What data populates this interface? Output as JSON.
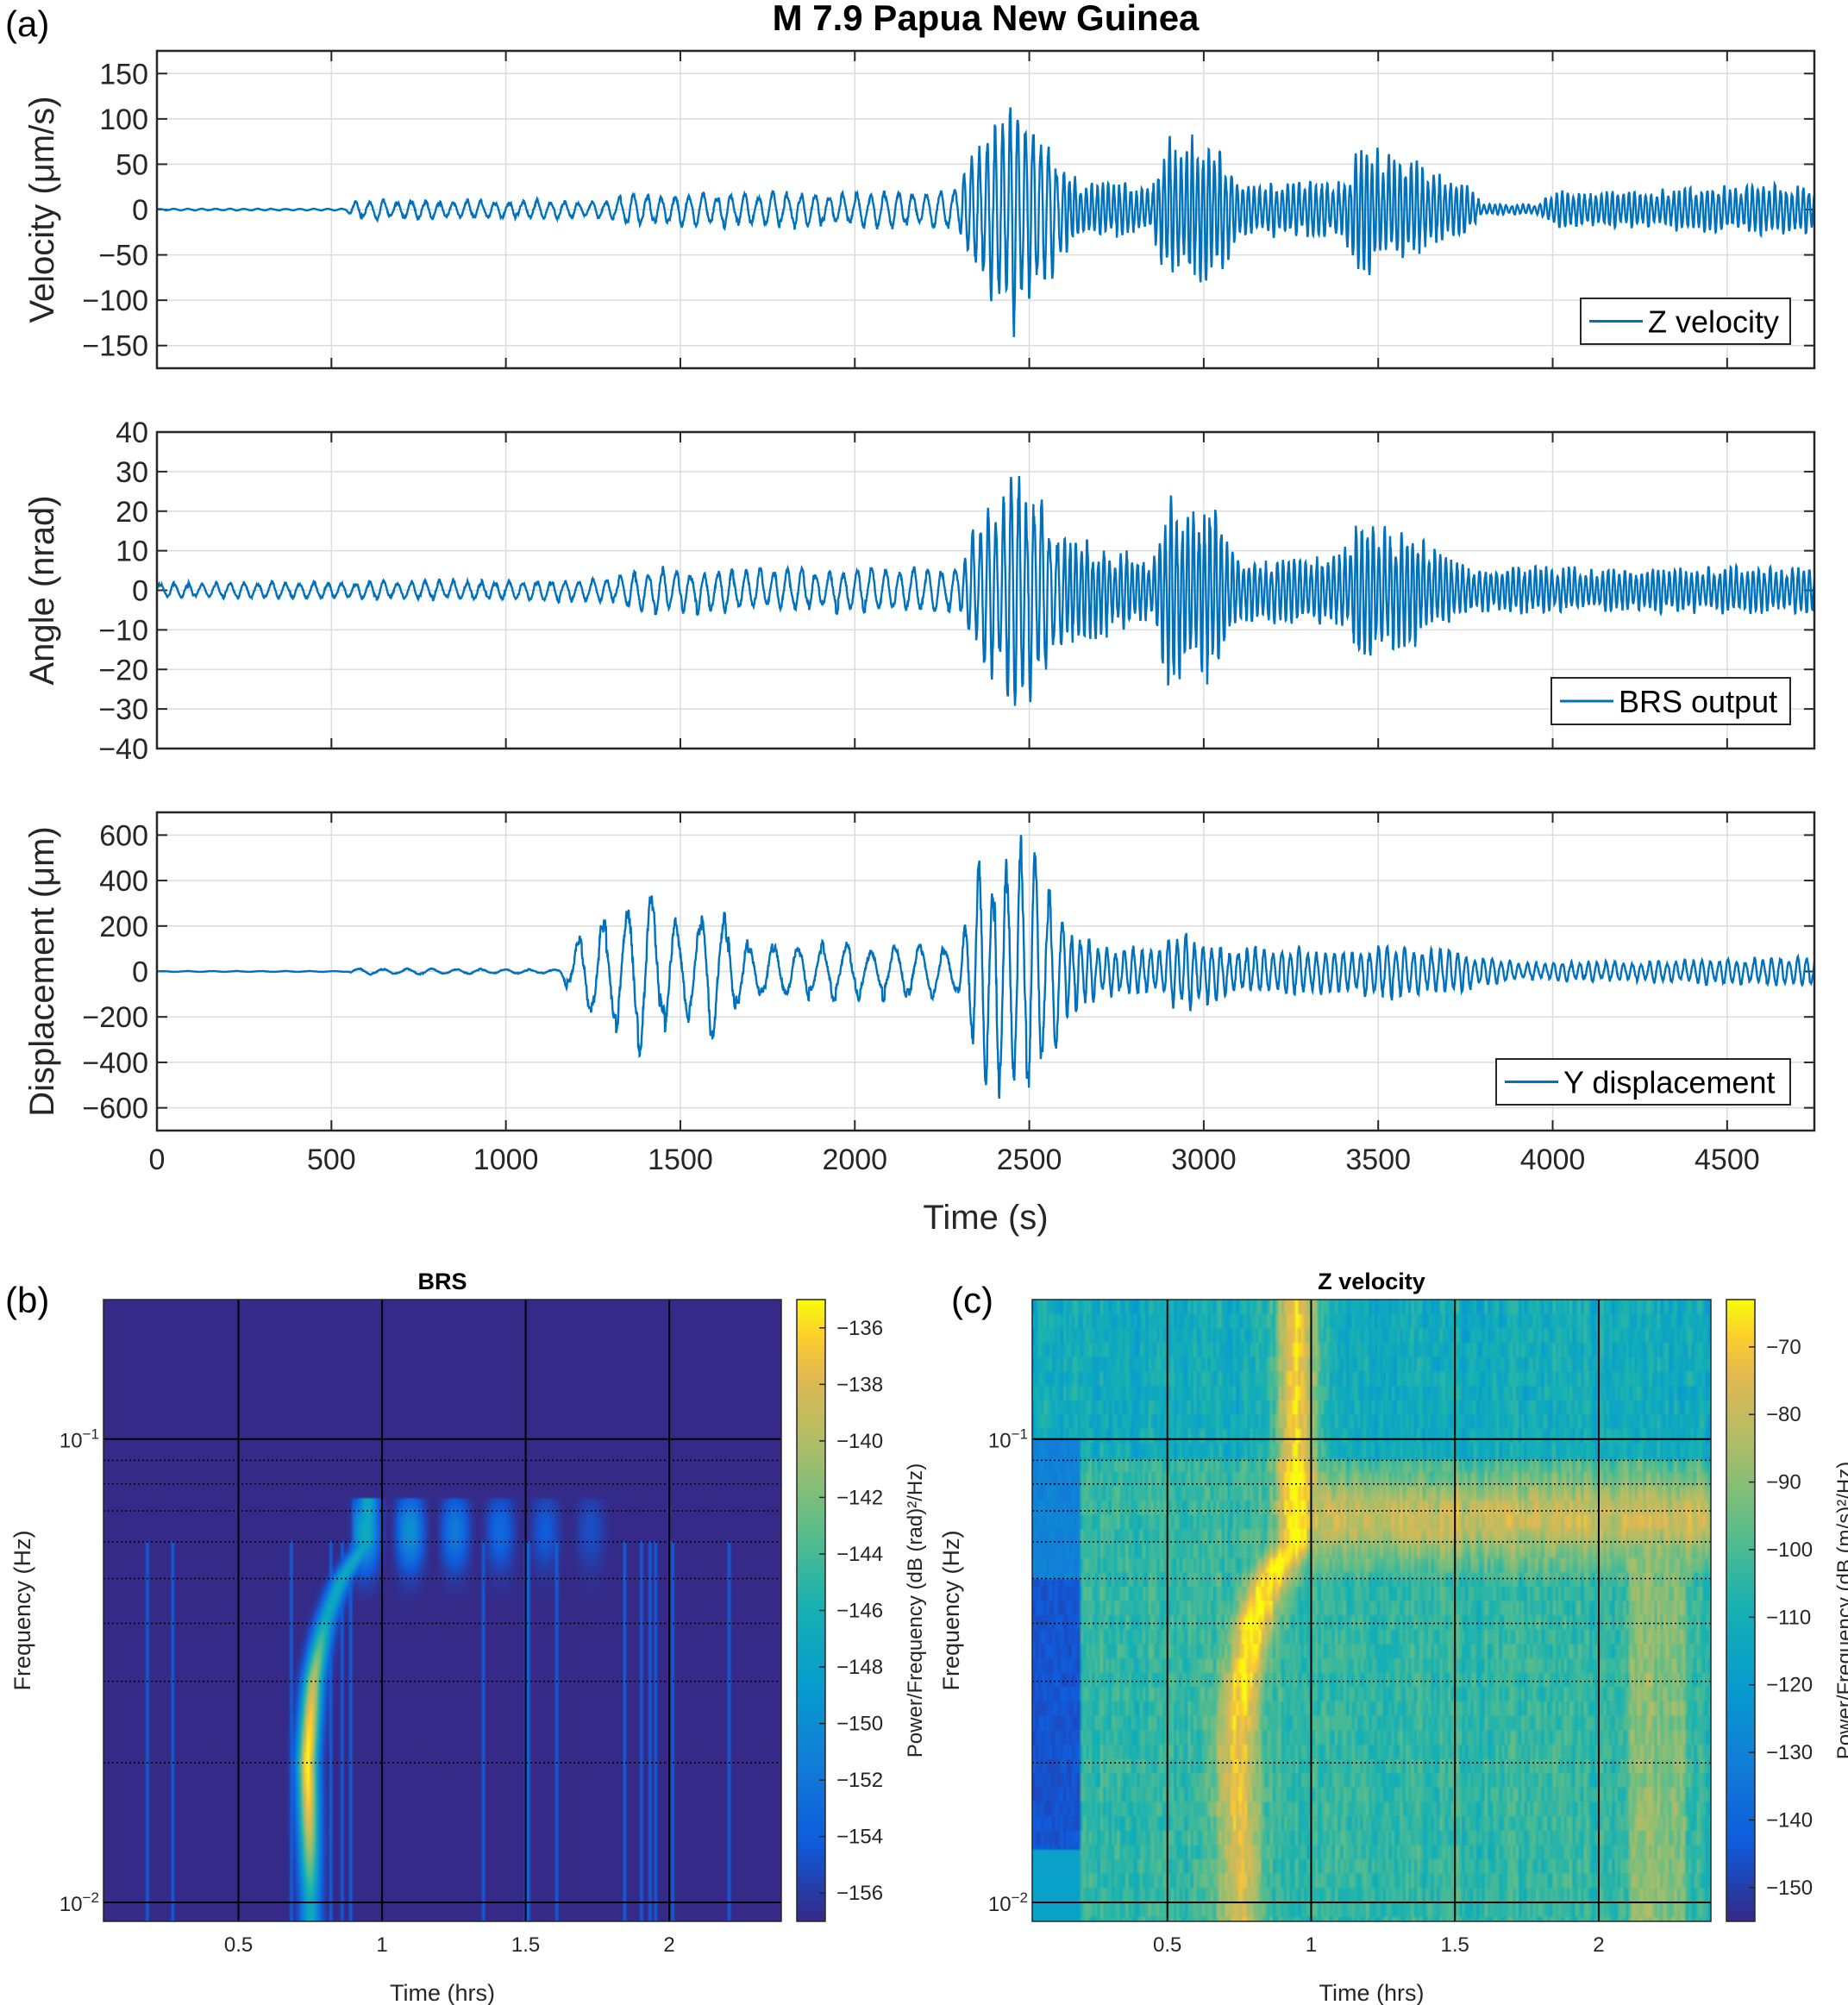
{
  "figure": {
    "title": "M 7.9 Papua New Guinea",
    "panel_labels": [
      "(a)",
      "(b)",
      "(c)"
    ],
    "line_color": "#0072BD"
  },
  "chart_data": [
    {
      "type": "line",
      "panel": "(a)",
      "series": [
        {
          "name": "Z velocity"
        }
      ],
      "ylabel": "Velocity (μm/s)",
      "xlabel": "",
      "xlim": [
        0,
        4750
      ],
      "ylim": [
        -175,
        175
      ],
      "xticks": [
        0,
        500,
        1000,
        1500,
        2000,
        2500,
        3000,
        3500,
        4000,
        4500
      ],
      "yticks": [
        150,
        100,
        50,
        0,
        -50,
        -100,
        -150
      ],
      "grid": true,
      "legend_placement": "bottom-right",
      "amplitude_envelope": [
        [
          0,
          1
        ],
        [
          540,
          1
        ],
        [
          560,
          12
        ],
        [
          1300,
          10
        ],
        [
          1350,
          20
        ],
        [
          2280,
          22
        ],
        [
          2330,
          60
        ],
        [
          2450,
          140
        ],
        [
          2520,
          110
        ],
        [
          2600,
          50
        ],
        [
          2650,
          30
        ],
        [
          2850,
          30
        ],
        [
          2900,
          85
        ],
        [
          3050,
          80
        ],
        [
          3100,
          30
        ],
        [
          3400,
          35
        ],
        [
          3450,
          75
        ],
        [
          3600,
          55
        ],
        [
          3750,
          30
        ],
        [
          3800,
          6
        ],
        [
          3950,
          6
        ],
        [
          4000,
          22
        ],
        [
          4300,
          22
        ],
        [
          4400,
          25
        ],
        [
          4750,
          30
        ]
      ],
      "dominant_period_s": [
        [
          0,
          40
        ],
        [
          2300,
          22
        ],
        [
          2600,
          16
        ]
      ]
    },
    {
      "type": "line",
      "panel": "",
      "series": [
        {
          "name": "BRS output"
        }
      ],
      "ylabel": "Angle (nrad)",
      "xlabel": "",
      "xlim": [
        0,
        4750
      ],
      "ylim": [
        -40,
        40
      ],
      "xticks": [
        0,
        500,
        1000,
        1500,
        2000,
        2500,
        3000,
        3500,
        4000,
        4500
      ],
      "yticks": [
        40,
        30,
        20,
        10,
        0,
        -10,
        -20,
        -30,
        -40
      ],
      "grid": true,
      "legend_placement": "bottom-right",
      "amplitude_envelope": [
        [
          0,
          2
        ],
        [
          1300,
          3
        ],
        [
          1400,
          6
        ],
        [
          2300,
          6
        ],
        [
          2330,
          15
        ],
        [
          2480,
          32
        ],
        [
          2600,
          15
        ],
        [
          2850,
          8
        ],
        [
          2900,
          26
        ],
        [
          3050,
          22
        ],
        [
          3100,
          8
        ],
        [
          3400,
          10
        ],
        [
          3450,
          20
        ],
        [
          3650,
          12
        ],
        [
          3750,
          6
        ],
        [
          4750,
          6
        ]
      ],
      "dominant_period_s": [
        [
          0,
          40
        ],
        [
          2300,
          22
        ],
        [
          2600,
          16
        ]
      ]
    },
    {
      "type": "line",
      "panel": "",
      "series": [
        {
          "name": "Y displacement"
        }
      ],
      "ylabel": "Displacement (μm)",
      "xlabel": "Time (s)",
      "xlim": [
        0,
        4750
      ],
      "ylim": [
        -700,
        700
      ],
      "xticks": [
        0,
        500,
        1000,
        1500,
        2000,
        2500,
        3000,
        3500,
        4000,
        4500
      ],
      "yticks": [
        600,
        400,
        200,
        0,
        -200,
        -400,
        -600
      ],
      "grid": true,
      "legend_placement": "bottom-right",
      "amplitude_envelope": [
        [
          0,
          2
        ],
        [
          550,
          2
        ],
        [
          560,
          15
        ],
        [
          1150,
          10
        ],
        [
          1200,
          150
        ],
        [
          1400,
          400
        ],
        [
          1500,
          200
        ],
        [
          1600,
          340
        ],
        [
          1700,
          150
        ],
        [
          2300,
          120
        ],
        [
          2350,
          500
        ],
        [
          2480,
          620
        ],
        [
          2550,
          450
        ],
        [
          2600,
          220
        ],
        [
          2700,
          120
        ],
        [
          2850,
          100
        ],
        [
          2950,
          200
        ],
        [
          3050,
          120
        ],
        [
          3400,
          100
        ],
        [
          3500,
          130
        ],
        [
          3700,
          100
        ],
        [
          3900,
          40
        ],
        [
          4750,
          70
        ]
      ],
      "dominant_period_s": [
        [
          0,
          70
        ],
        [
          2300,
          40
        ],
        [
          2600,
          25
        ]
      ]
    },
    {
      "type": "heatmap",
      "panel": "(b)",
      "title": "BRS",
      "xlabel": "Time (hrs)",
      "ylabel": "Frequency (Hz)",
      "xlim": [
        0.03,
        2.39
      ],
      "ylim": [
        0.0091,
        0.2
      ],
      "yscale": "log",
      "xticks": [
        0.5,
        1,
        1.5,
        2
      ],
      "yticks": [
        {
          "exp": "-1",
          "value": 0.1
        },
        {
          "exp": "-2",
          "value": 0.01
        }
      ],
      "y_minor_grid": [
        0.02,
        0.03,
        0.04,
        0.05,
        0.06,
        0.07,
        0.08,
        0.09
      ],
      "colormap": "parula",
      "colorbar_label": "Power/Frequency (dB (rad)²/Hz)",
      "colorbar_ticks": [
        -136,
        -138,
        -140,
        -142,
        -144,
        -146,
        -148,
        -150,
        -152,
        -154,
        -156
      ],
      "clim": [
        -157,
        -135
      ],
      "ridge_time_freq": [
        [
          0.75,
          0.01
        ],
        [
          0.74,
          0.02
        ],
        [
          0.76,
          0.03
        ],
        [
          0.8,
          0.04
        ],
        [
          0.86,
          0.05
        ],
        [
          0.95,
          0.06
        ],
        [
          1.05,
          0.065
        ],
        [
          1.7,
          0.065
        ]
      ]
    },
    {
      "type": "heatmap",
      "panel": "(c)",
      "title": "Z velocity",
      "xlabel": "Time (hrs)",
      "ylabel": "Frequency (Hz)",
      "xlim": [
        0.03,
        2.39
      ],
      "ylim": [
        0.0091,
        0.2
      ],
      "yscale": "log",
      "xticks": [
        0.5,
        1,
        1.5,
        2
      ],
      "yticks": [
        {
          "exp": "-1",
          "value": 0.1
        },
        {
          "exp": "-2",
          "value": 0.01
        }
      ],
      "y_minor_grid": [
        0.02,
        0.03,
        0.04,
        0.05,
        0.06,
        0.07,
        0.08,
        0.09
      ],
      "colormap": "parula",
      "colorbar_label": "Power/Frequency (dB (m/s)²/Hz)",
      "colorbar_ticks": [
        -70,
        -80,
        -90,
        -100,
        -110,
        -120,
        -130,
        -140,
        -150
      ],
      "clim": [
        -155,
        -63
      ],
      "ridge_time_freq": [
        [
          0.75,
          0.01
        ],
        [
          0.74,
          0.02
        ],
        [
          0.76,
          0.03
        ],
        [
          0.8,
          0.04
        ],
        [
          0.86,
          0.05
        ],
        [
          0.95,
          0.06
        ],
        [
          1.05,
          0.065
        ],
        [
          1.7,
          0.065
        ]
      ]
    }
  ]
}
